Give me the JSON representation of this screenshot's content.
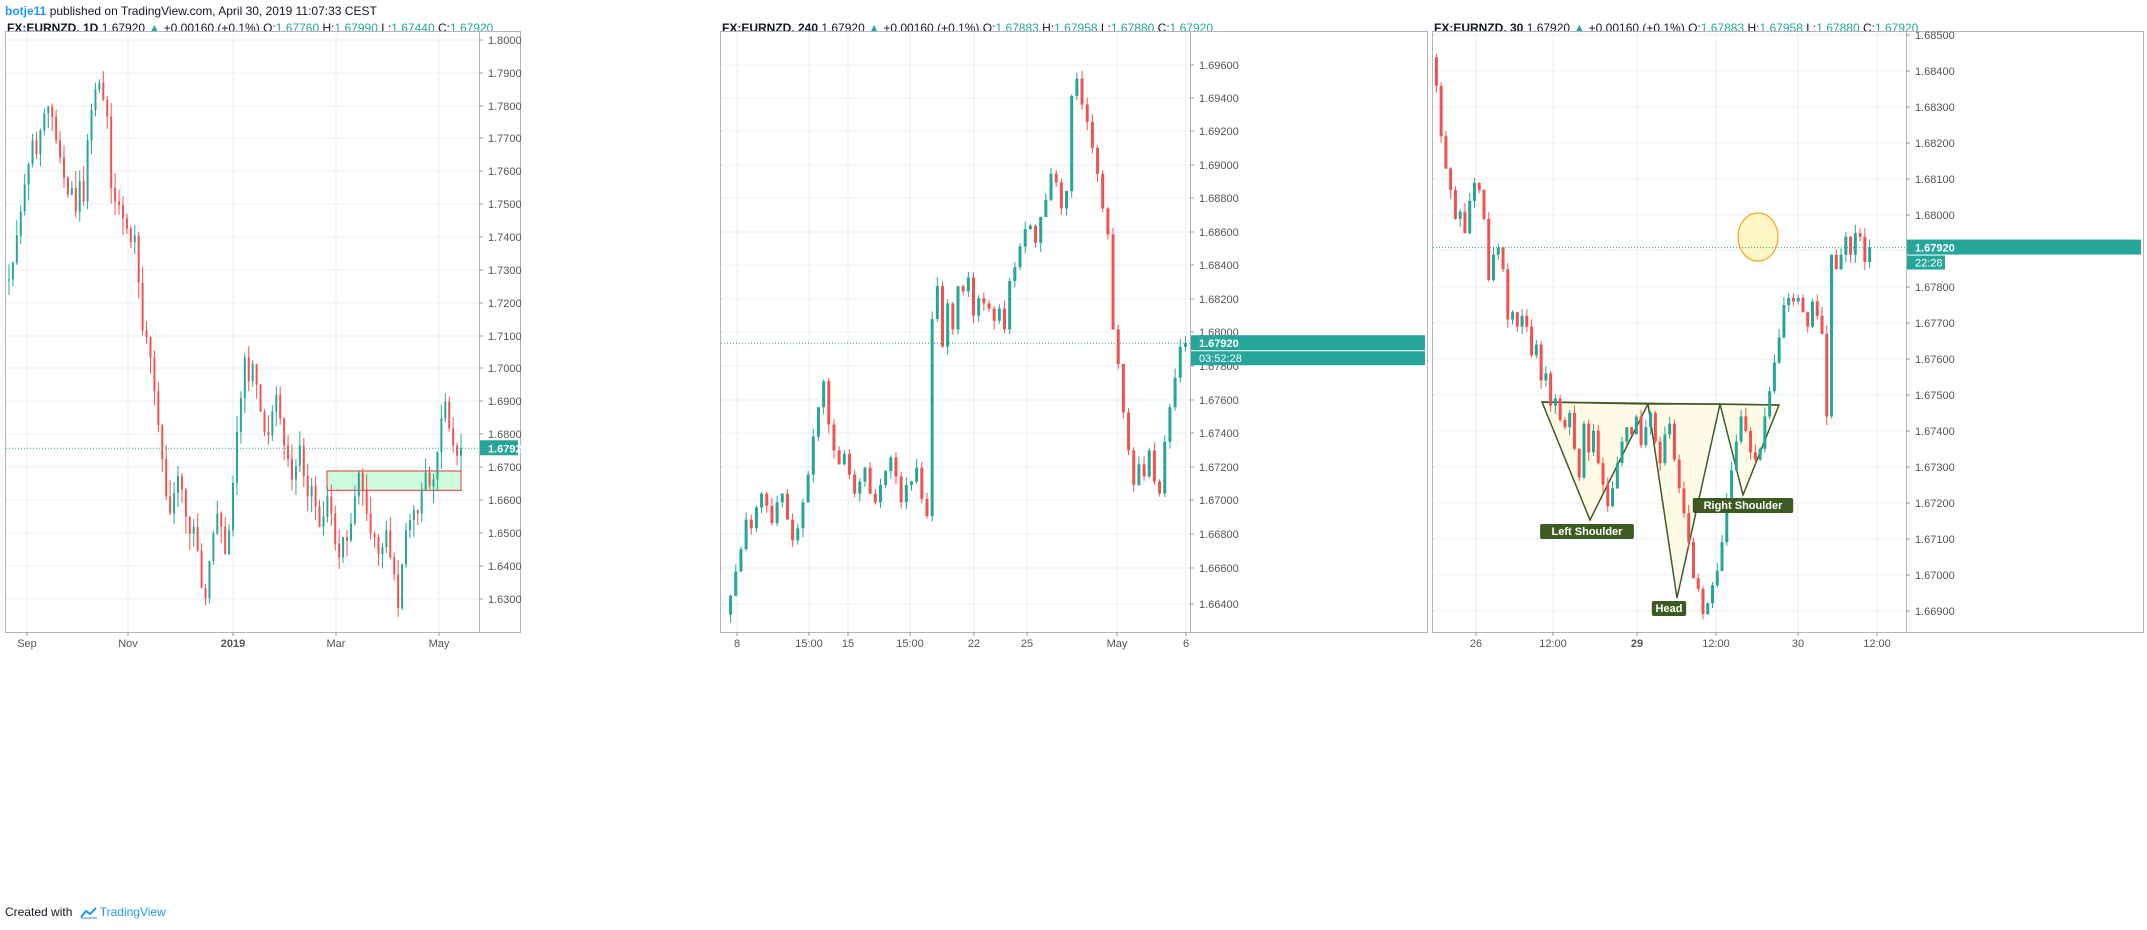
{
  "header": {
    "author": "botje11",
    "text": " published on TradingView.com, April 30, 2019 11:07:33 CEST"
  },
  "footer": {
    "created_with": "Created with",
    "brand": "TradingView"
  },
  "colors": {
    "up": "#26a69a",
    "down": "#ef5350",
    "up_fill": "#4caf50",
    "grid": "#eaeef3",
    "axis_text": "#555555",
    "price_line": "#26a69a",
    "pattern_line": "#3e5a23",
    "pattern_label_bg": "#3e5a23",
    "zone_fill": "#b9f6ca",
    "zone_border": "#e53935",
    "circle_border": "#f6a21e",
    "circle_fill": "#fff5b4"
  },
  "charts": [
    {
      "symbol": "FX:EURNZD, 1D",
      "last": "1.67920",
      "change": "+0.00160 (+0.1%)",
      "o": "1.67760",
      "h": "1.67990",
      "l": "1.67440",
      "c": "1.67920",
      "price_tag": "1.67920",
      "y_ticks": [
        "1.80000",
        "1.79000",
        "1.78000",
        "1.77000",
        "1.76000",
        "1.75000",
        "1.74000",
        "1.73000",
        "1.72000",
        "1.71000",
        "1.70000",
        "1.69000",
        "1.68000",
        "1.67000",
        "1.66000",
        "1.65000",
        "1.64000",
        "1.63000"
      ],
      "x_ticks": [
        "Sep",
        "Nov",
        "2019",
        "Mar",
        "May"
      ]
    },
    {
      "symbol": "FX:EURNZD, 240",
      "last": "1.67920",
      "change": "+0.00160 (+0.1%)",
      "o": "1.67883",
      "h": "1.67958",
      "l": "1.67880",
      "c": "1.67920",
      "price_tag": "1.67920",
      "countdown": "03:52:28",
      "y_ticks": [
        "1.69600",
        "1.69400",
        "1.69200",
        "1.69000",
        "1.68800",
        "1.68600",
        "1.68400",
        "1.68200",
        "1.68000",
        "1.67800",
        "1.67600",
        "1.67400",
        "1.67200",
        "1.67000",
        "1.66800",
        "1.66600",
        "1.66400"
      ],
      "x_ticks": [
        "8",
        "15:00",
        "15",
        "15:00",
        "22",
        "25",
        "May",
        "6"
      ]
    },
    {
      "symbol": "FX:EURNZD, 30",
      "last": "1.67920",
      "change": "+0.00160 (+0.1%)",
      "o": "1.67883",
      "h": "1.67958",
      "l": "1.67880",
      "c": "1.67920",
      "price_tag": "1.67920",
      "countdown": "22:28",
      "y_ticks": [
        "1.68500",
        "1.68400",
        "1.68300",
        "1.68200",
        "1.68100",
        "1.68000",
        "1.67900",
        "1.67800",
        "1.67700",
        "1.67600",
        "1.67500",
        "1.67400",
        "1.67300",
        "1.67200",
        "1.67100",
        "1.67000",
        "1.66900"
      ],
      "x_ticks": [
        "26",
        "12:00",
        "29",
        "12:00",
        "30",
        "12:00"
      ],
      "annotations": {
        "left_shoulder": "Left Shoulder",
        "head": "Head",
        "right_shoulder": "Right Shoulder"
      }
    }
  ],
  "chart_data": [
    {
      "type": "candlestick",
      "title": "FX:EURNZD, 1D",
      "ylim": [
        1.625,
        1.802
      ],
      "x_labels": [
        "Sep",
        "Nov",
        "2019",
        "Mar",
        "May"
      ],
      "last_price": 1.6792,
      "close": [
        1.729,
        1.734,
        1.742,
        1.749,
        1.757,
        1.763,
        1.77,
        1.766,
        1.773,
        1.778,
        1.78,
        1.777,
        1.77,
        1.765,
        1.759,
        1.754,
        1.756,
        1.749,
        1.758,
        1.752,
        1.77,
        1.779,
        1.785,
        1.787,
        1.782,
        1.777,
        1.756,
        1.752,
        1.751,
        1.747,
        1.744,
        1.74,
        1.742,
        1.728,
        1.714,
        1.712,
        1.706,
        1.696,
        1.686,
        1.676,
        1.665,
        1.66,
        1.666,
        1.671,
        1.667,
        1.659,
        1.654,
        1.656,
        1.649,
        1.638,
        1.635,
        1.646,
        1.654,
        1.66,
        1.656,
        1.648,
        1.655,
        1.669,
        1.684,
        1.694,
        1.706,
        1.699,
        1.704,
        1.698,
        1.69,
        1.684,
        1.683,
        1.69,
        1.695,
        1.688,
        1.68,
        1.676,
        1.67,
        1.674,
        1.68,
        1.671,
        1.665,
        1.668,
        1.662,
        1.656,
        1.659,
        1.665,
        1.66,
        1.651,
        1.647,
        1.653,
        1.652,
        1.657,
        1.665,
        1.672,
        1.667,
        1.66,
        1.654,
        1.653,
        1.648,
        1.65,
        1.655,
        1.647,
        1.642,
        1.632,
        1.645,
        1.655,
        1.658,
        1.661,
        1.66,
        1.667,
        1.672,
        1.668,
        1.67,
        1.678,
        1.688,
        1.693,
        1.685,
        1.68,
        1.677,
        1.6792
      ]
    },
    {
      "type": "candlestick",
      "title": "FX:EURNZD, 240",
      "ylim": [
        1.6625,
        1.6972
      ],
      "x_labels": [
        "8",
        "15:00",
        "15",
        "15:00",
        "22",
        "25",
        "May",
        "6"
      ],
      "last_price": 1.6792,
      "close": [
        1.6646,
        1.666,
        1.6673,
        1.669,
        1.6685,
        1.6697,
        1.6705,
        1.6698,
        1.6688,
        1.67,
        1.6705,
        1.669,
        1.6678,
        1.6685,
        1.67,
        1.6716,
        1.6738,
        1.6755,
        1.677,
        1.6745,
        1.673,
        1.6722,
        1.6728,
        1.6716,
        1.6705,
        1.6712,
        1.672,
        1.6705,
        1.67,
        1.671,
        1.6718,
        1.6726,
        1.6715,
        1.67,
        1.671,
        1.6712,
        1.672,
        1.6702,
        1.6692,
        1.6806,
        1.6825,
        1.679,
        1.6815,
        1.68,
        1.6825,
        1.6822,
        1.683,
        1.6808,
        1.6818,
        1.6815,
        1.6812,
        1.6805,
        1.6812,
        1.68,
        1.6828,
        1.6836,
        1.6848,
        1.6858,
        1.686,
        1.685,
        1.6865,
        1.6875,
        1.689,
        1.6885,
        1.687,
        1.688,
        1.6935,
        1.6945,
        1.693,
        1.692,
        1.6905,
        1.689,
        1.687,
        1.6855,
        1.68,
        1.678,
        1.6752,
        1.673,
        1.671,
        1.6722,
        1.6715,
        1.673,
        1.6712,
        1.6705,
        1.6735,
        1.6755,
        1.6772,
        1.679,
        1.6792
      ]
    },
    {
      "type": "candlestick",
      "title": "FX:EURNZD, 30",
      "ylim": [
        1.6685,
        1.6852
      ],
      "x_labels": [
        "26",
        "12:00",
        "29",
        "12:00",
        "30",
        "12:00"
      ],
      "last_price": 1.6792,
      "pattern": "inverse head and shoulders",
      "close": [
        1.6837,
        1.6823,
        1.6814,
        1.6808,
        1.68,
        1.6802,
        1.6796,
        1.6805,
        1.681,
        1.6808,
        1.68,
        1.6783,
        1.679,
        1.6792,
        1.6786,
        1.6772,
        1.6774,
        1.677,
        1.6773,
        1.677,
        1.6762,
        1.6765,
        1.6755,
        1.6757,
        1.6748,
        1.675,
        1.6744,
        1.6742,
        1.6746,
        1.6736,
        1.6728,
        1.6743,
        1.6735,
        1.6741,
        1.6732,
        1.6726,
        1.672,
        1.6725,
        1.6732,
        1.6738,
        1.6742,
        1.674,
        1.6745,
        1.6737,
        1.6742,
        1.6746,
        1.6738,
        1.6732,
        1.674,
        1.6743,
        1.6733,
        1.6725,
        1.6718,
        1.671,
        1.67,
        1.6697,
        1.669,
        1.6693,
        1.6698,
        1.6702,
        1.671,
        1.6722,
        1.673,
        1.6738,
        1.6745,
        1.6741,
        1.6735,
        1.6733,
        1.6736,
        1.6745,
        1.6752,
        1.676,
        1.6767,
        1.6776,
        1.6778,
        1.6777,
        1.6778,
        1.6774,
        1.677,
        1.6777,
        1.6773,
        1.6768,
        1.6745,
        1.679,
        1.6786,
        1.679,
        1.6795,
        1.679,
        1.6796,
        1.6795,
        1.6788,
        1.6792
      ]
    }
  ]
}
